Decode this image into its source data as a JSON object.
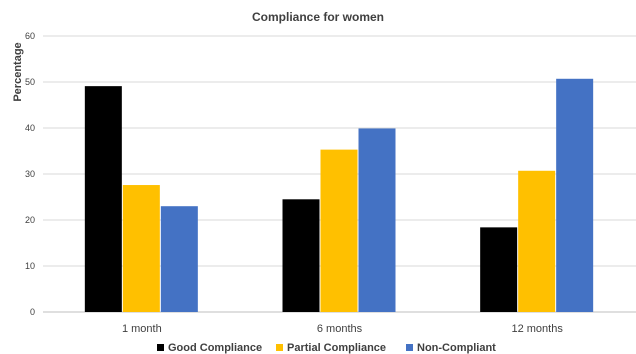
{
  "chart_data": {
    "type": "bar",
    "title": "Compliance for women",
    "ylabel": "Percentage",
    "xlabel": "",
    "ylim": [
      0,
      60
    ],
    "yticks": [
      0,
      10,
      20,
      30,
      40,
      50,
      60
    ],
    "categories": [
      "1 month",
      "6 months",
      "12 months"
    ],
    "series": [
      {
        "name": "Good Compliance",
        "color": "#000000",
        "values": [
          49.1,
          24.5,
          18.4
        ]
      },
      {
        "name": "Partial Compliance",
        "color": "#FFC000",
        "values": [
          27.6,
          35.3,
          30.7
        ]
      },
      {
        "name": "Non-Compliant",
        "color": "#4472C4",
        "values": [
          23.0,
          39.9,
          50.7
        ]
      }
    ],
    "grid": true,
    "legend_position": "bottom"
  }
}
